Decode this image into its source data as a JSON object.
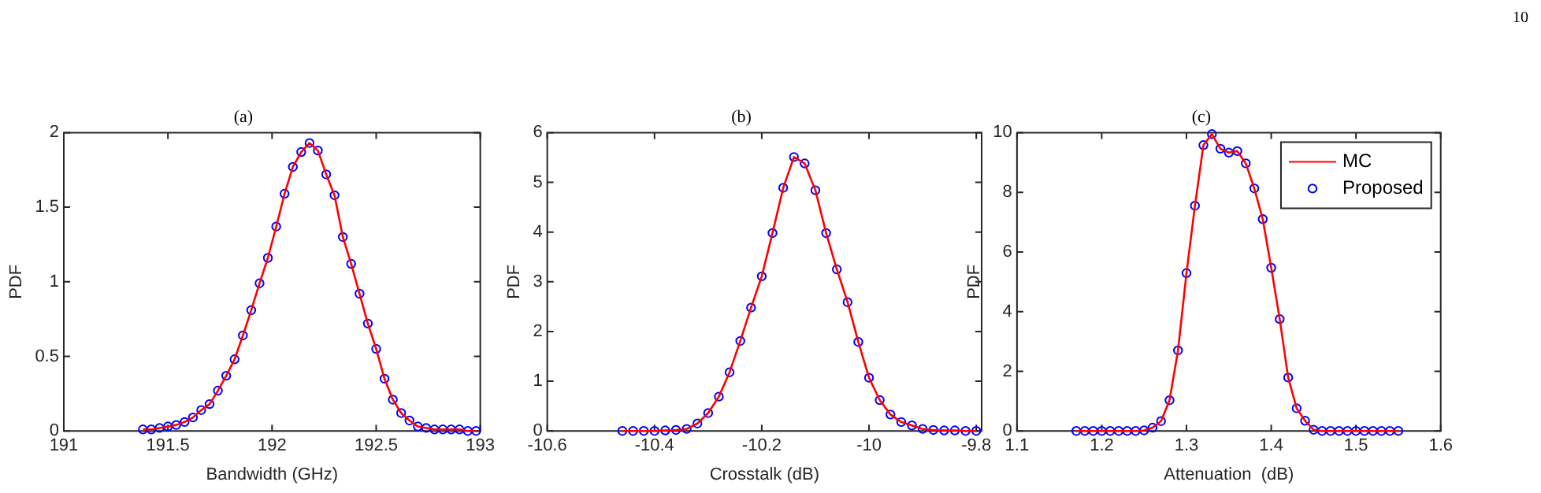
{
  "chart_data": [
    {
      "type": "line",
      "title": "(a)",
      "xlabel": "Bandwidth (GHz)",
      "ylabel": "PDF",
      "legend": false,
      "x": [
        191.38,
        191.42,
        191.46,
        191.5,
        191.54,
        191.58,
        191.62,
        191.66,
        191.7,
        191.74,
        191.78,
        191.82,
        191.86,
        191.9,
        191.94,
        191.98,
        192.02,
        192.06,
        192.1,
        192.14,
        192.18,
        192.22,
        192.26,
        192.3,
        192.34,
        192.38,
        192.42,
        192.46,
        192.5,
        192.54,
        192.58,
        192.62,
        192.66,
        192.7,
        192.74,
        192.78,
        192.82,
        192.86,
        192.9,
        192.94,
        192.98
      ],
      "series": [
        {
          "type": "line",
          "color": "#ff0000",
          "marker": "none",
          "values": [
            0.01,
            0.01,
            0.02,
            0.03,
            0.04,
            0.06,
            0.09,
            0.14,
            0.18,
            0.27,
            0.37,
            0.48,
            0.64,
            0.81,
            0.99,
            1.16,
            1.37,
            1.59,
            1.77,
            1.87,
            1.93,
            1.88,
            1.72,
            1.58,
            1.3,
            1.12,
            0.92,
            0.72,
            0.55,
            0.35,
            0.21,
            0.12,
            0.07,
            0.03,
            0.02,
            0.01,
            0.01,
            0.01,
            0.01,
            0,
            0
          ]
        },
        {
          "type": "scatter",
          "color": "#0000ff",
          "marker": "circle",
          "values": [
            0.01,
            0.01,
            0.02,
            0.03,
            0.04,
            0.06,
            0.09,
            0.14,
            0.18,
            0.27,
            0.37,
            0.48,
            0.64,
            0.81,
            0.99,
            1.16,
            1.37,
            1.59,
            1.77,
            1.87,
            1.93,
            1.88,
            1.72,
            1.58,
            1.3,
            1.12,
            0.92,
            0.72,
            0.55,
            0.35,
            0.21,
            0.12,
            0.07,
            0.03,
            0.02,
            0.01,
            0.01,
            0.01,
            0.01,
            0,
            0
          ]
        }
      ],
      "xlim": [
        191,
        193
      ],
      "xticks": [
        191,
        191.5,
        192,
        192.5,
        193
      ],
      "ylim": [
        0,
        2
      ],
      "yticks": [
        0,
        0.5,
        1,
        1.5,
        2
      ]
    },
    {
      "type": "line",
      "title": "(b)",
      "xlabel": "Crosstalk (dB)",
      "ylabel": "PDF",
      "legend": false,
      "x": [
        -10.46,
        -10.44,
        -10.42,
        -10.4,
        -10.38,
        -10.36,
        -10.34,
        -10.32,
        -10.3,
        -10.28,
        -10.26,
        -10.24,
        -10.22,
        -10.2,
        -10.18,
        -10.16,
        -10.14,
        -10.12,
        -10.1,
        -10.08,
        -10.06,
        -10.04,
        -10.02,
        -10,
        -9.98,
        -9.96,
        -9.94,
        -9.92,
        -9.9,
        -9.88,
        -9.86,
        -9.84,
        -9.82,
        -9.8
      ],
      "series": [
        {
          "type": "line",
          "color": "#ff0000",
          "marker": "none",
          "values": [
            0,
            0,
            0,
            0,
            0.01,
            0.02,
            0.04,
            0.15,
            0.36,
            0.69,
            1.18,
            1.81,
            2.48,
            3.11,
            3.98,
            4.89,
            5.51,
            5.38,
            4.84,
            3.98,
            3.25,
            2.59,
            1.79,
            1.07,
            0.62,
            0.33,
            0.18,
            0.11,
            0.04,
            0.02,
            0.01,
            0.01,
            0,
            0
          ]
        },
        {
          "type": "scatter",
          "color": "#0000ff",
          "marker": "circle",
          "values": [
            0,
            0,
            0,
            0,
            0.01,
            0.02,
            0.04,
            0.15,
            0.36,
            0.69,
            1.18,
            1.81,
            2.48,
            3.11,
            3.98,
            4.89,
            5.51,
            5.38,
            4.84,
            3.98,
            3.25,
            2.59,
            1.79,
            1.07,
            0.62,
            0.33,
            0.18,
            0.11,
            0.04,
            0.02,
            0.01,
            0.01,
            0,
            0
          ]
        }
      ],
      "xlim": [
        -10.6,
        -9.79
      ],
      "xticks": [
        -10.6,
        -10.4,
        -10.2,
        -10,
        -9.8
      ],
      "ylim": [
        0,
        6
      ],
      "yticks": [
        0,
        1,
        2,
        3,
        4,
        5,
        6
      ]
    },
    {
      "type": "line",
      "title": "(c)",
      "xlabel": "Attenuation  (dB)",
      "ylabel": "PDF",
      "legend": "top right",
      "annotations": [
        "10"
      ],
      "x": [
        1.17,
        1.18,
        1.19,
        1.2,
        1.21,
        1.22,
        1.23,
        1.24,
        1.25,
        1.26,
        1.27,
        1.28,
        1.29,
        1.3,
        1.31,
        1.32,
        1.33,
        1.34,
        1.35,
        1.36,
        1.37,
        1.38,
        1.39,
        1.4,
        1.41,
        1.42,
        1.43,
        1.44,
        1.45,
        1.46,
        1.47,
        1.48,
        1.49,
        1.5,
        1.51,
        1.52,
        1.53,
        1.54,
        1.55
      ],
      "series": [
        {
          "type": "line",
          "name": "MC",
          "color": "#ff0000",
          "marker": "none",
          "values": [
            0,
            0,
            0,
            0,
            0,
            0,
            0,
            0,
            0.02,
            0.11,
            0.33,
            1.03,
            2.7,
            5.29,
            7.55,
            9.58,
            9.95,
            9.46,
            9.33,
            9.38,
            8.97,
            8.13,
            7.1,
            5.47,
            3.75,
            1.79,
            0.76,
            0.34,
            0.04,
            0,
            0,
            0,
            0,
            0,
            0,
            0,
            0,
            0,
            0
          ]
        },
        {
          "type": "scatter",
          "name": "Proposed",
          "color": "#0000ff",
          "marker": "circle",
          "values": [
            0,
            0,
            0,
            0,
            0,
            0,
            0,
            0,
            0.02,
            0.11,
            0.33,
            1.03,
            2.7,
            5.29,
            7.55,
            9.58,
            9.95,
            9.46,
            9.33,
            9.38,
            8.97,
            8.13,
            7.1,
            5.47,
            3.75,
            1.79,
            0.76,
            0.34,
            0.04,
            0,
            0,
            0,
            0,
            0,
            0,
            0,
            0,
            0,
            0
          ]
        }
      ],
      "xlim": [
        1.1,
        1.6
      ],
      "xticks": [
        1.1,
        1.2,
        1.3,
        1.4,
        1.5,
        1.6
      ],
      "ylim": [
        0,
        10
      ],
      "yticks": [
        0,
        2,
        4,
        6,
        8,
        10
      ]
    }
  ]
}
